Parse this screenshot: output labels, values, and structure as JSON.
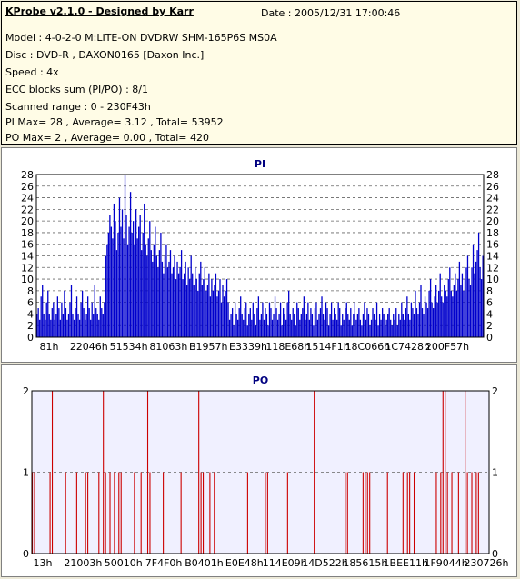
{
  "info": {
    "title": "KProbe v2.1.0 - Designed by Karr",
    "date": "Date : 2005/12/31 17:00:46",
    "lines": [
      "Model : 4-0-2-0 M:LITE-ON DVDRW SHM-165P6S MS0A",
      "Disc : DVD-R , DAXON0165 [Daxon Inc.]",
      "Speed : 4x",
      "ECC blocks sum (PI/PO) : 8/1",
      "Scanned range : 0 - 230F43h",
      "PI Max= 28 , Average= 3.12 , Total= 53952",
      "PO Max= 2 , Average= 0.00 , Total= 420"
    ]
  },
  "chart_data": [
    {
      "type": "bar",
      "title": "PI",
      "ylim": [
        0,
        28
      ],
      "yticks": [
        0,
        2,
        4,
        6,
        8,
        10,
        12,
        14,
        16,
        18,
        20,
        22,
        24,
        26,
        28
      ],
      "xticks": [
        "81h",
        "22046h",
        "51534h",
        "81063h",
        "B1957h",
        "E3339h",
        "118E68h",
        "1514F1h",
        "18C066h",
        "1C7428h",
        "200F57h"
      ],
      "grid": true,
      "color": "#0000cc",
      "values": [
        4,
        5,
        3,
        7,
        9,
        4,
        3,
        6,
        8,
        4,
        3,
        5,
        6,
        3,
        4,
        7,
        5,
        3,
        6,
        4,
        8,
        5,
        3,
        4,
        6,
        9,
        4,
        3,
        5,
        7,
        4,
        3,
        6,
        8,
        5,
        3,
        4,
        7,
        5,
        3,
        6,
        4,
        9,
        5,
        4,
        3,
        7,
        5,
        4,
        6,
        14,
        16,
        18,
        21,
        19,
        17,
        23,
        20,
        15,
        18,
        24,
        19,
        22,
        17,
        28,
        21,
        16,
        19,
        25,
        18,
        20,
        16,
        22,
        17,
        19,
        21,
        15,
        18,
        23,
        16,
        14,
        17,
        20,
        15,
        13,
        16,
        19,
        14,
        12,
        15,
        18,
        13,
        11,
        14,
        16,
        12,
        13,
        15,
        11,
        12,
        14,
        10,
        13,
        11,
        12,
        15,
        10,
        11,
        13,
        9,
        12,
        10,
        14,
        11,
        9,
        12,
        10,
        8,
        11,
        13,
        9,
        10,
        12,
        8,
        9,
        11,
        7,
        10,
        8,
        9,
        11,
        7,
        8,
        10,
        6,
        9,
        7,
        8,
        10,
        6,
        3,
        4,
        5,
        2,
        6,
        4,
        3,
        5,
        7,
        4,
        3,
        5,
        6,
        2,
        4,
        5,
        3,
        6,
        4,
        2,
        5,
        7,
        3,
        4,
        6,
        3,
        5,
        4,
        2,
        6,
        5,
        3,
        4,
        7,
        5,
        3,
        4,
        6,
        2,
        5,
        4,
        3,
        6,
        8,
        4,
        3,
        5,
        4,
        2,
        6,
        5,
        3,
        4,
        5,
        7,
        3,
        4,
        6,
        3,
        5,
        4,
        2,
        5,
        6,
        3,
        4,
        5,
        7,
        4,
        3,
        6,
        5,
        2,
        4,
        6,
        3,
        5,
        4,
        3,
        6,
        5,
        2,
        4,
        3,
        5,
        6,
        4,
        3,
        5,
        2,
        4,
        6,
        3,
        4,
        5,
        3,
        2,
        4,
        6,
        3,
        5,
        4,
        2,
        3,
        5,
        4,
        3,
        6,
        2,
        4,
        3,
        5,
        4,
        2,
        3,
        4,
        5,
        3,
        2,
        4,
        3,
        5,
        2,
        4,
        3,
        6,
        4,
        3,
        5,
        7,
        4,
        3,
        6,
        5,
        4,
        8,
        5,
        4,
        6,
        9,
        5,
        4,
        7,
        6,
        5,
        8,
        10,
        6,
        5,
        7,
        9,
        6,
        8,
        11,
        7,
        6,
        9,
        8,
        7,
        10,
        12,
        8,
        7,
        9,
        11,
        8,
        10,
        13,
        9,
        11,
        8,
        10,
        12,
        14,
        10,
        9,
        12,
        16,
        11,
        13,
        15,
        18,
        12,
        10,
        14
      ]
    },
    {
      "type": "bar",
      "title": "PO",
      "ylim": [
        0,
        2
      ],
      "yticks": [
        0,
        1,
        2
      ],
      "xticks": [
        "13h",
        "21003h",
        "50010h",
        "7F4F0h",
        "B0401h",
        "E0E48h",
        "114E09h",
        "14D522h",
        "185615h",
        "1BEE11h",
        "1F9044h",
        "230726h"
      ],
      "grid": true,
      "color": "#cc0000",
      "values": [
        1,
        1,
        0,
        0,
        0,
        0,
        0,
        0,
        1,
        2,
        0,
        0,
        0,
        0,
        0,
        1,
        0,
        0,
        0,
        0,
        1,
        0,
        0,
        0,
        1,
        1,
        0,
        0,
        0,
        0,
        1,
        0,
        2,
        1,
        0,
        1,
        0,
        1,
        0,
        1,
        1,
        0,
        0,
        0,
        0,
        0,
        1,
        0,
        0,
        1,
        0,
        0,
        2,
        1,
        0,
        0,
        0,
        0,
        0,
        1,
        0,
        0,
        0,
        0,
        0,
        0,
        0,
        1,
        0,
        0,
        0,
        0,
        0,
        0,
        0,
        2,
        1,
        1,
        0,
        0,
        1,
        0,
        1,
        0,
        0,
        0,
        0,
        0,
        0,
        0,
        0,
        0,
        0,
        0,
        0,
        0,
        0,
        1,
        0,
        0,
        0,
        0,
        0,
        0,
        0,
        1,
        1,
        0,
        0,
        0,
        0,
        0,
        0,
        0,
        0,
        1,
        0,
        0,
        0,
        0,
        0,
        0,
        0,
        0,
        0,
        0,
        0,
        2,
        0,
        0,
        0,
        0,
        0,
        0,
        0,
        0,
        0,
        0,
        0,
        0,
        0,
        1,
        1,
        0,
        0,
        0,
        0,
        0,
        0,
        1,
        1,
        1,
        1,
        0,
        0,
        0,
        0,
        0,
        0,
        0,
        1,
        0,
        0,
        0,
        0,
        0,
        0,
        1,
        0,
        1,
        1,
        0,
        1,
        0,
        0,
        0,
        0,
        0,
        0,
        0,
        0,
        0,
        1,
        0,
        1,
        2,
        2,
        1,
        0,
        1,
        0,
        0,
        1,
        0,
        0,
        2,
        1,
        0,
        1,
        0,
        1,
        1,
        0,
        0,
        0,
        0
      ]
    }
  ]
}
